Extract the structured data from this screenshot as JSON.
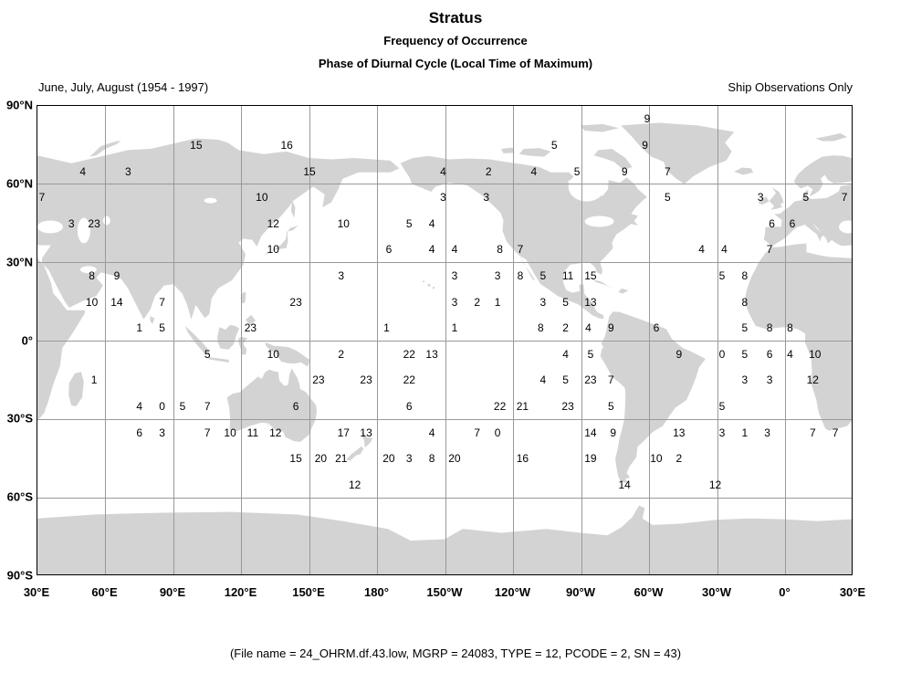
{
  "header": {
    "title": "Stratus",
    "subtitle1": "Frequency of Occurrence",
    "subtitle2": "Phase of Diurnal Cycle (Local Time of Maximum)",
    "period_label": "June, July, August (1954 - 1997)",
    "source_label": "Ship Observations Only"
  },
  "footer": {
    "caption": "(File name = 24_OHRM.df.43.low, MGRP = 24083, TYPE = 12, PCODE = 2, SN = 43)"
  },
  "colors": {
    "land": "#d3d3d3",
    "grid": "#999999",
    "border": "#000000",
    "text": "#000000"
  },
  "chart_data": {
    "type": "scatter",
    "subtype": "gridded-value-map",
    "title": "Stratus Frequency of Occurrence - Phase of Diurnal Cycle (Local Time of Maximum)",
    "projection": "equirectangular",
    "lon_range_deg_east": [
      30,
      390
    ],
    "lat_range": [
      -90,
      90
    ],
    "grid_lon_deg_east": [
      60,
      90,
      120,
      150,
      180,
      210,
      240,
      270,
      300,
      330,
      360
    ],
    "grid_lat": [
      60,
      30,
      0,
      -30,
      -60
    ],
    "lon_axis": [
      {
        "label": "30°E",
        "lon": 30
      },
      {
        "label": "60°E",
        "lon": 60
      },
      {
        "label": "90°E",
        "lon": 90
      },
      {
        "label": "120°E",
        "lon": 120
      },
      {
        "label": "150°E",
        "lon": 150
      },
      {
        "label": "180°",
        "lon": 180
      },
      {
        "label": "150°W",
        "lon": 210
      },
      {
        "label": "120°W",
        "lon": 240
      },
      {
        "label": "90°W",
        "lon": 270
      },
      {
        "label": "60°W",
        "lon": 300
      },
      {
        "label": "30°W",
        "lon": 330
      },
      {
        "label": "0°",
        "lon": 360
      },
      {
        "label": "30°E",
        "lon": 390
      }
    ],
    "lat_axis": [
      {
        "label": "90°N",
        "lat": 90
      },
      {
        "label": "60°N",
        "lat": 60
      },
      {
        "label": "30°N",
        "lat": 30
      },
      {
        "label": "0°",
        "lat": 0
      },
      {
        "label": "30°S",
        "lat": -30
      },
      {
        "label": "60°S",
        "lat": -60
      },
      {
        "label": "90°S",
        "lat": -90
      }
    ],
    "points_format": [
      "lon_deg_east_30_to_390",
      "lat_deg",
      "value_local_hour_of_maximum"
    ],
    "points": [
      [
        299,
        85,
        "9"
      ],
      [
        100,
        75,
        "15"
      ],
      [
        140,
        75,
        "16"
      ],
      [
        258,
        75,
        "5"
      ],
      [
        298,
        75,
        "9"
      ],
      [
        50,
        65,
        "4"
      ],
      [
        70,
        65,
        "3"
      ],
      [
        150,
        65,
        "15"
      ],
      [
        209,
        65,
        "4"
      ],
      [
        229,
        65,
        "2"
      ],
      [
        249,
        65,
        "4"
      ],
      [
        268,
        65,
        "5"
      ],
      [
        289,
        65,
        "9"
      ],
      [
        308,
        65,
        "7"
      ],
      [
        32,
        55,
        "7"
      ],
      [
        129,
        55,
        "10"
      ],
      [
        209,
        55,
        "3"
      ],
      [
        228,
        55,
        "3"
      ],
      [
        308,
        55,
        "5"
      ],
      [
        349,
        55,
        "3"
      ],
      [
        369,
        55,
        "5"
      ],
      [
        386,
        55,
        "7"
      ],
      [
        45,
        45,
        "3"
      ],
      [
        55,
        45,
        "23"
      ],
      [
        134,
        45,
        "12"
      ],
      [
        165,
        45,
        "10"
      ],
      [
        194,
        45,
        "5"
      ],
      [
        204,
        45,
        "4"
      ],
      [
        354,
        45,
        "6"
      ],
      [
        363,
        45,
        "6"
      ],
      [
        134,
        35,
        "10"
      ],
      [
        185,
        35,
        "6"
      ],
      [
        204,
        35,
        "4"
      ],
      [
        214,
        35,
        "4"
      ],
      [
        234,
        35,
        "8"
      ],
      [
        243,
        35,
        "7"
      ],
      [
        323,
        35,
        "4"
      ],
      [
        333,
        35,
        "4"
      ],
      [
        353,
        35,
        "7"
      ],
      [
        54,
        25,
        "8"
      ],
      [
        65,
        25,
        "9"
      ],
      [
        164,
        25,
        "3"
      ],
      [
        214,
        25,
        "3"
      ],
      [
        233,
        25,
        "3"
      ],
      [
        243,
        25,
        "8"
      ],
      [
        253,
        25,
        "5"
      ],
      [
        264,
        25,
        "11"
      ],
      [
        274,
        25,
        "15"
      ],
      [
        332,
        25,
        "5"
      ],
      [
        342,
        25,
        "8"
      ],
      [
        54,
        15,
        "10"
      ],
      [
        65,
        15,
        "14"
      ],
      [
        85,
        15,
        "7"
      ],
      [
        144,
        15,
        "23"
      ],
      [
        214,
        15,
        "3"
      ],
      [
        224,
        15,
        "2"
      ],
      [
        233,
        15,
        "1"
      ],
      [
        253,
        15,
        "3"
      ],
      [
        263,
        15,
        "5"
      ],
      [
        274,
        15,
        "13"
      ],
      [
        342,
        15,
        "8"
      ],
      [
        75,
        5,
        "1"
      ],
      [
        85,
        5,
        "5"
      ],
      [
        124,
        5,
        "23"
      ],
      [
        184,
        5,
        "1"
      ],
      [
        214,
        5,
        "1"
      ],
      [
        252,
        5,
        "8"
      ],
      [
        263,
        5,
        "2"
      ],
      [
        273,
        5,
        "4"
      ],
      [
        283,
        5,
        "9"
      ],
      [
        303,
        5,
        "6"
      ],
      [
        342,
        5,
        "5"
      ],
      [
        353,
        5,
        "8"
      ],
      [
        362,
        5,
        "8"
      ],
      [
        105,
        -5,
        "5"
      ],
      [
        134,
        -5,
        "10"
      ],
      [
        164,
        -5,
        "2"
      ],
      [
        194,
        -5,
        "22"
      ],
      [
        204,
        -5,
        "13"
      ],
      [
        263,
        -5,
        "4"
      ],
      [
        274,
        -5,
        "5"
      ],
      [
        313,
        -5,
        "9"
      ],
      [
        332,
        -5,
        "0"
      ],
      [
        342,
        -5,
        "5"
      ],
      [
        353,
        -5,
        "6"
      ],
      [
        362,
        -5,
        "4"
      ],
      [
        373,
        -5,
        "10"
      ],
      [
        55,
        -15,
        "1"
      ],
      [
        154,
        -15,
        "23"
      ],
      [
        175,
        -15,
        "23"
      ],
      [
        194,
        -15,
        "22"
      ],
      [
        253,
        -15,
        "4"
      ],
      [
        263,
        -15,
        "5"
      ],
      [
        274,
        -15,
        "23"
      ],
      [
        283,
        -15,
        "7"
      ],
      [
        342,
        -15,
        "3"
      ],
      [
        353,
        -15,
        "3"
      ],
      [
        372,
        -15,
        "12"
      ],
      [
        75,
        -25,
        "4"
      ],
      [
        85,
        -25,
        "0"
      ],
      [
        94,
        -25,
        "5"
      ],
      [
        105,
        -25,
        "7"
      ],
      [
        144,
        -25,
        "6"
      ],
      [
        194,
        -25,
        "6"
      ],
      [
        234,
        -25,
        "22"
      ],
      [
        244,
        -25,
        "21"
      ],
      [
        264,
        -25,
        "23"
      ],
      [
        283,
        -25,
        "5"
      ],
      [
        332,
        -25,
        "5"
      ],
      [
        75,
        -35,
        "6"
      ],
      [
        85,
        -35,
        "3"
      ],
      [
        105,
        -35,
        "7"
      ],
      [
        115,
        -35,
        "10"
      ],
      [
        125,
        -35,
        "11"
      ],
      [
        135,
        -35,
        "12"
      ],
      [
        165,
        -35,
        "17"
      ],
      [
        175,
        -35,
        "13"
      ],
      [
        204,
        -35,
        "4"
      ],
      [
        224,
        -35,
        "7"
      ],
      [
        233,
        -35,
        "0"
      ],
      [
        274,
        -35,
        "14"
      ],
      [
        284,
        -35,
        "9"
      ],
      [
        313,
        -35,
        "13"
      ],
      [
        332,
        -35,
        "3"
      ],
      [
        342,
        -35,
        "1"
      ],
      [
        352,
        -35,
        "3"
      ],
      [
        372,
        -35,
        "7"
      ],
      [
        382,
        -35,
        "7"
      ],
      [
        144,
        -45,
        "15"
      ],
      [
        155,
        -45,
        "20"
      ],
      [
        164,
        -45,
        "21"
      ],
      [
        185,
        -45,
        "20"
      ],
      [
        194,
        -45,
        "3"
      ],
      [
        204,
        -45,
        "8"
      ],
      [
        214,
        -45,
        "20"
      ],
      [
        244,
        -45,
        "16"
      ],
      [
        274,
        -45,
        "19"
      ],
      [
        303,
        -45,
        "10"
      ],
      [
        313,
        -45,
        "2"
      ],
      [
        170,
        -55,
        "12"
      ],
      [
        289,
        -55,
        "14"
      ],
      [
        329,
        -55,
        "12"
      ]
    ]
  }
}
